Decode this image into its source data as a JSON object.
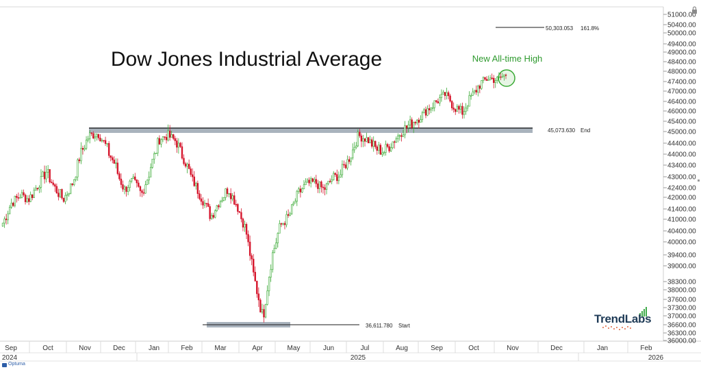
{
  "chart_data": {
    "type": "candlestick",
    "title": "Dow Jones Industrial Average",
    "annotation": "New All-time High",
    "colors": {
      "up": "#3aaa35",
      "down": "#d5142b",
      "band": "#9aa6b2",
      "annotation": "#2e9a2e"
    },
    "ylim": [
      36000,
      51400
    ],
    "y_ticks": [
      "51000.00",
      "50400.00",
      "50000.00",
      "49400.00",
      "49000.00",
      "48400.00",
      "48000.00",
      "47400.00",
      "47000.00",
      "46400.00",
      "46000.00",
      "45400.00",
      "45000.00",
      "44400.00",
      "44000.00",
      "43400.00",
      "43000.00",
      "42400.00",
      "42000.00",
      "41400.00",
      "41000.00",
      "40400.00",
      "40000.00",
      "39400.00",
      "39000.00",
      "38300.00",
      "38000.00",
      "37600.00",
      "37300.00",
      "37000.00",
      "36600.00",
      "36300.00",
      "36000.00"
    ],
    "x_months": [
      "Sep",
      "Oct",
      "Nov",
      "Dec",
      "Jan",
      "Feb",
      "Mar",
      "Apr",
      "May",
      "Jun",
      "Jul",
      "Aug",
      "Sep",
      "Oct",
      "Nov",
      "Dec",
      "Jan",
      "Feb"
    ],
    "x_years": [
      "2024",
      "2025",
      "2026"
    ],
    "levels": [
      {
        "value_label": "50,303.053",
        "tag": "161.8%"
      },
      {
        "value_label": "45,073.630",
        "tag": "End"
      },
      {
        "value_label": "36,611.780",
        "tag": "Start"
      }
    ],
    "weekly_close": [
      40800,
      41700,
      42100,
      41900,
      42500,
      43200,
      42400,
      41900,
      42600,
      44000,
      44800,
      44900,
      44200,
      43400,
      42300,
      42800,
      42100,
      43300,
      44600,
      44800,
      44500,
      43600,
      42700,
      41900,
      41100,
      41800,
      42400,
      41600,
      40500,
      38400,
      36900,
      39300,
      40700,
      41100,
      42100,
      42600,
      42700,
      42300,
      42900,
      43100,
      43800,
      44800,
      44600,
      44200,
      44100,
      44500,
      45000,
      45300,
      45600,
      46100,
      46400,
      46800,
      46200,
      45900,
      46700,
      47300,
      47600,
      47500,
      47800
    ]
  },
  "branding": {
    "name": "TrendLabs",
    "footer": "Optuma"
  }
}
